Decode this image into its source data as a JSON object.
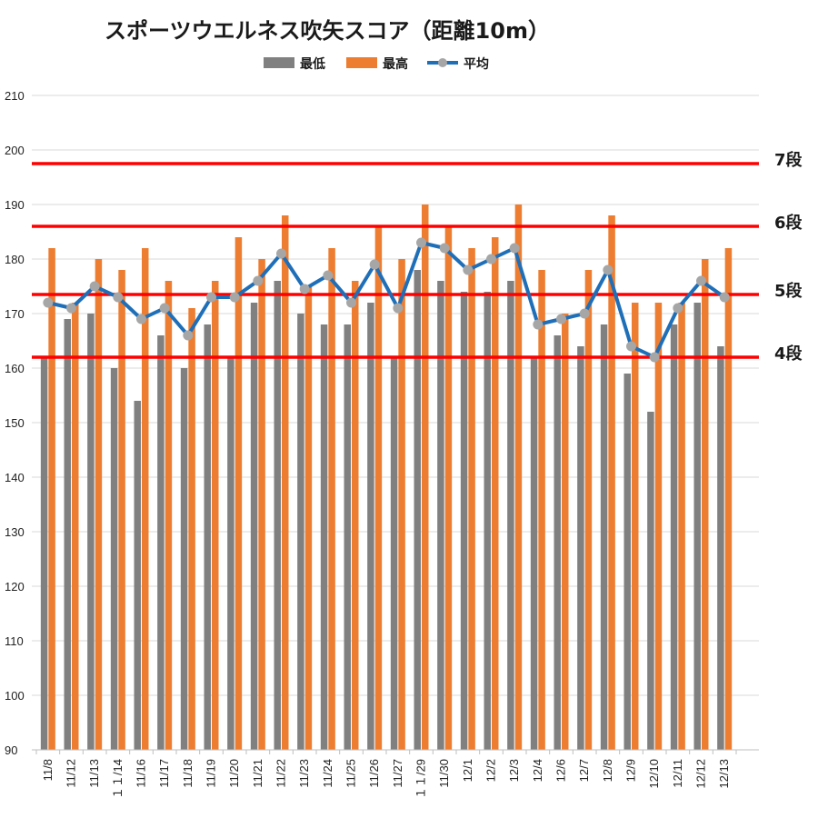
{
  "chart_data": {
    "type": "bar",
    "title": "スポーツウエルネス吹矢スコア（距離10m）",
    "categories": [
      "11/8",
      "11/12",
      "11/13",
      "１１/14",
      "11/16",
      "11/17",
      "11/18",
      "11/19",
      "11/20",
      "11/21",
      "11/22",
      "11/23",
      "11/24",
      "11/25",
      "11/26",
      "11/27",
      "１１/29",
      "11/30",
      "12/1",
      "12/2",
      "12/3",
      "12/4",
      "12/6",
      "12/7",
      "12/8",
      "12/9",
      "12/10",
      "12/11",
      "12/12",
      "12/13"
    ],
    "series": [
      {
        "name": "最低",
        "type": "bar",
        "color": "#808080",
        "values": [
          162,
          169,
          170,
          160,
          154,
          166,
          160,
          168,
          162,
          172,
          176,
          170,
          168,
          168,
          172,
          162,
          178,
          176,
          174,
          174,
          176,
          162,
          166,
          164,
          168,
          159,
          152,
          168,
          172,
          164
        ]
      },
      {
        "name": "最高",
        "type": "bar",
        "color": "#ED7D31",
        "values": [
          182,
          172,
          180,
          178,
          182,
          176,
          171,
          176,
          184,
          180,
          188,
          175,
          182,
          176,
          186,
          180,
          190,
          186,
          182,
          184,
          190,
          178,
          170,
          178,
          188,
          172,
          172,
          172,
          180,
          182
        ]
      },
      {
        "name": "平均",
        "type": "line",
        "color": "#1F6FB8",
        "marker_color": "#A6A6A6",
        "values": [
          172,
          171,
          175,
          173,
          169,
          171,
          166,
          173,
          173,
          176,
          181,
          174.5,
          177,
          172,
          179,
          171,
          183,
          182,
          178,
          180,
          182,
          168,
          169,
          170,
          178,
          164,
          162,
          171,
          176,
          173
        ]
      }
    ],
    "ylim": [
      90,
      210
    ],
    "yticks": [
      90,
      100,
      110,
      120,
      130,
      140,
      150,
      160,
      170,
      180,
      190,
      200,
      210
    ],
    "grid": true,
    "legend": "top",
    "reference_lines": [
      {
        "label": "7段",
        "value": 197.5,
        "color": "#FF0000"
      },
      {
        "label": "6段",
        "value": 186,
        "color": "#FF0000"
      },
      {
        "label": "5段",
        "value": 173.5,
        "color": "#FF0000"
      },
      {
        "label": "4段",
        "value": 162,
        "color": "#FF0000"
      }
    ]
  }
}
